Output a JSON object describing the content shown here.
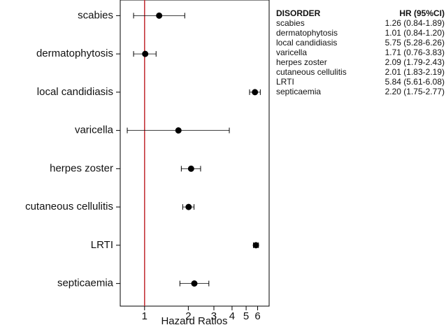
{
  "chart_data": {
    "type": "forest",
    "categories": [
      "scabies",
      "dermatophytosis",
      "local candidiasis",
      "varicella",
      "herpes zoster",
      "cutaneous cellulitis",
      "LRTI",
      "septicaemia"
    ],
    "values": [
      1.26,
      1.01,
      5.75,
      1.71,
      2.09,
      2.01,
      5.84,
      2.2
    ],
    "lower": [
      0.84,
      0.84,
      5.28,
      0.76,
      1.79,
      1.83,
      5.61,
      1.75
    ],
    "upper": [
      1.89,
      1.2,
      6.26,
      3.83,
      2.43,
      2.19,
      6.08,
      2.77
    ],
    "value_labels": [
      "1.26 (0.84-1.89)",
      "1.01 (0.84-1.20)",
      "5.75 (5.28-6.26)",
      "1.71 (0.76-3.83)",
      "2.09 (1.79-2.43)",
      "2.01 (1.83-2.19)",
      "5.84 (5.61-6.08)",
      "2.20 (1.75-2.77)"
    ],
    "table_headers": [
      "DISORDER",
      "HR (95%CI)"
    ],
    "xlabel": "Hazard Ratios",
    "xscale": "log",
    "xlim": [
      0.68,
      7.2
    ],
    "xticks": [
      1,
      2,
      3,
      4,
      5,
      6
    ],
    "reference_line": 1,
    "reference_color": "#c0282d",
    "color": "#000000"
  }
}
